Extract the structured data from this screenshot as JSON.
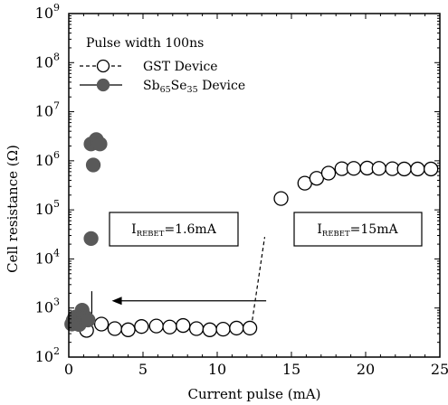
{
  "chart_data": {
    "type": "scatter",
    "title": "",
    "xlabel": "Current pulse (mA)",
    "ylabel": "Cell resistance (Ω)",
    "xlim": [
      0,
      25
    ],
    "ylim_log10": [
      2,
      9
    ],
    "yscale": "log",
    "x_ticks": [
      0,
      5,
      10,
      15,
      20,
      25
    ],
    "y_ticks_exp": [
      2,
      3,
      4,
      5,
      6,
      7,
      8,
      9
    ],
    "y_tick_base": "10",
    "grid": false,
    "legend": {
      "placement": "top-left",
      "header": "Pulse width 100ns",
      "entries": [
        {
          "series": 0,
          "label": "GST Device",
          "label_parts": [
            {
              "t": "GST Device",
              "sub": false
            }
          ]
        },
        {
          "series": 1,
          "label": "Sb65Se35 Device",
          "label_parts": [
            {
              "t": "Sb",
              "sub": false
            },
            {
              "t": "65",
              "sub": true
            },
            {
              "t": "Se",
              "sub": false
            },
            {
              "t": "35",
              "sub": true
            },
            {
              "t": " Device",
              "sub": false
            }
          ]
        }
      ]
    },
    "series": [
      {
        "name": "GST Device",
        "marker": "open-circle",
        "line": "dashed",
        "color": "#000000",
        "points": [
          [
            1.2,
            350
          ],
          [
            2.2,
            470
          ],
          [
            3.1,
            380
          ],
          [
            4.0,
            360
          ],
          [
            4.9,
            420
          ],
          [
            5.9,
            430
          ],
          [
            6.8,
            410
          ],
          [
            7.7,
            440
          ],
          [
            8.6,
            380
          ],
          [
            9.5,
            360
          ],
          [
            10.4,
            370
          ],
          [
            11.3,
            390
          ],
          [
            12.2,
            390
          ],
          [
            14.3,
            170000
          ],
          [
            15.9,
            350000
          ],
          [
            16.7,
            440000
          ],
          [
            17.5,
            560000
          ],
          [
            18.4,
            690000
          ],
          [
            19.2,
            700000
          ],
          [
            20.1,
            710000
          ],
          [
            20.9,
            700000
          ],
          [
            21.8,
            690000
          ],
          [
            22.6,
            680000
          ],
          [
            23.5,
            680000
          ],
          [
            24.4,
            680000
          ]
        ],
        "transition": {
          "x": [
            12.3,
            13.2
          ],
          "y": [
            420,
            28000
          ]
        }
      },
      {
        "name": "Sb65Se35 Device",
        "marker": "filled-circle",
        "line": "solid",
        "color": "#595959",
        "points": [
          [
            0.2,
            470
          ],
          [
            0.3,
            560
          ],
          [
            0.4,
            650
          ],
          [
            0.6,
            520
          ],
          [
            0.7,
            460
          ],
          [
            0.8,
            740
          ],
          [
            0.9,
            900
          ],
          [
            1.0,
            650
          ],
          [
            1.15,
            640
          ],
          [
            1.3,
            570
          ],
          [
            1.5,
            26000
          ],
          [
            1.65,
            820000
          ],
          [
            1.5,
            2200000
          ],
          [
            1.85,
            2700000
          ],
          [
            1.95,
            2300000
          ],
          [
            2.1,
            2200000
          ]
        ],
        "transition": {
          "x": [
            1.55,
            1.55
          ],
          "y": [
            680,
            2200
          ]
        }
      }
    ],
    "annotations": [
      {
        "base": "I",
        "sub": "REBET",
        "value": "=1.6mA"
      },
      {
        "base": "I",
        "sub": "REBET",
        "value": "=15mA"
      }
    ],
    "arrow": {
      "from_x": 13.3,
      "to_x": 2.9,
      "y": 1400
    }
  }
}
